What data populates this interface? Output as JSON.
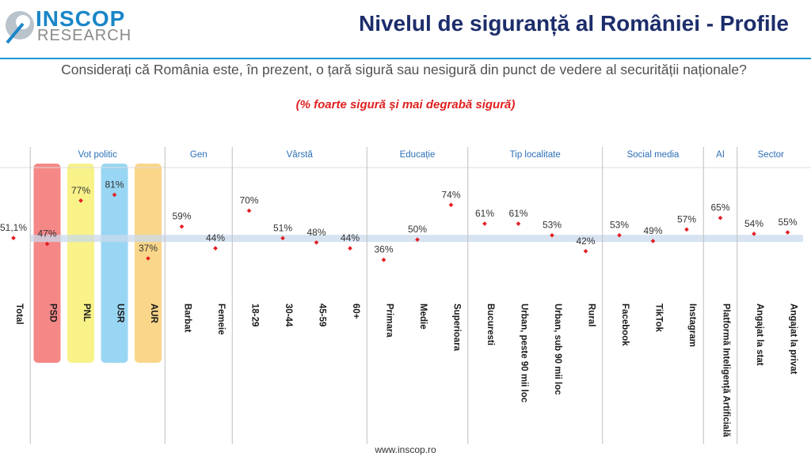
{
  "header": {
    "logo_top": "INSCOP",
    "logo_bottom": "RESEARCH",
    "title": "Nivelul de siguranță al României - Profile"
  },
  "question": "Considerați că România este, în prezent, o țară sigură sau nesigură din punct de vedere al securității naționale?",
  "note": "(% foarte sigură și mai degrabă sigură)",
  "footer": "www.inscop.ro",
  "chart_data": {
    "type": "scatter",
    "title": "",
    "xlabel": "",
    "ylabel": "",
    "ylim": [
      20,
      90
    ],
    "legend": "none",
    "reference": {
      "label": "Total",
      "value": 51.1
    },
    "groups": [
      {
        "name": "",
        "categories": [
          "Total"
        ]
      },
      {
        "name": "Vot politic",
        "categories": [
          "PSD",
          "PNL",
          "USR",
          "AUR"
        ]
      },
      {
        "name": "Gen",
        "categories": [
          "Barbat",
          "Femeie"
        ]
      },
      {
        "name": "Vârstă",
        "categories": [
          "18-29",
          "30-44",
          "45-59",
          "60+"
        ]
      },
      {
        "name": "Educație",
        "categories": [
          "Primara",
          "Medie",
          "Superioara"
        ]
      },
      {
        "name": "Tip localitate",
        "categories": [
          "Bucuresti",
          "Urban, peste 90 mii loc",
          "Urban, sub 90 mii loc",
          "Rural"
        ]
      },
      {
        "name": "Social media",
        "categories": [
          "Facebook",
          "TikTok",
          "Instagram"
        ]
      },
      {
        "name": "AI",
        "categories": [
          "Platformă Inteligență Artificială"
        ]
      },
      {
        "name": "Sector",
        "categories": [
          "Angajat la stat",
          "Angajat la privat"
        ]
      }
    ],
    "categories": [
      "Total",
      "PSD",
      "PNL",
      "USR",
      "AUR",
      "Barbat",
      "Femeie",
      "18-29",
      "30-44",
      "45-59",
      "60+",
      "Primara",
      "Medie",
      "Superioara",
      "Bucuresti",
      "Urban, peste 90 mii loc",
      "Urban, sub 90 mii loc",
      "Rural",
      "Facebook",
      "TikTok",
      "Instagram",
      "Platformă Inteligență Artificială",
      "Angajat la stat",
      "Angajat la privat"
    ],
    "values": [
      51.1,
      47,
      77,
      81,
      37,
      59,
      44,
      70,
      51,
      48,
      44,
      36,
      50,
      74,
      61,
      61,
      53,
      42,
      53,
      49,
      57,
      65,
      54,
      55
    ],
    "value_labels": [
      "51,1%",
      "47%",
      "77%",
      "81%",
      "37%",
      "59%",
      "44%",
      "70%",
      "51%",
      "48%",
      "44%",
      "36%",
      "50%",
      "74%",
      "61%",
      "61%",
      "53%",
      "42%",
      "53%",
      "49%",
      "57%",
      "65%",
      "54%",
      "55%"
    ],
    "party_highlights": [
      {
        "category": "PSD",
        "color": "#f47a7a"
      },
      {
        "category": "PNL",
        "color": "#f7f17c"
      },
      {
        "category": "USR",
        "color": "#8ed2f2"
      },
      {
        "category": "AUR",
        "color": "#f8d27d"
      }
    ],
    "colors": {
      "marker": "#e31e24",
      "label": "#333333",
      "group_label": "#2c6fb7",
      "reference_band": "#c9daec",
      "divider": "#bfbfbf"
    }
  }
}
